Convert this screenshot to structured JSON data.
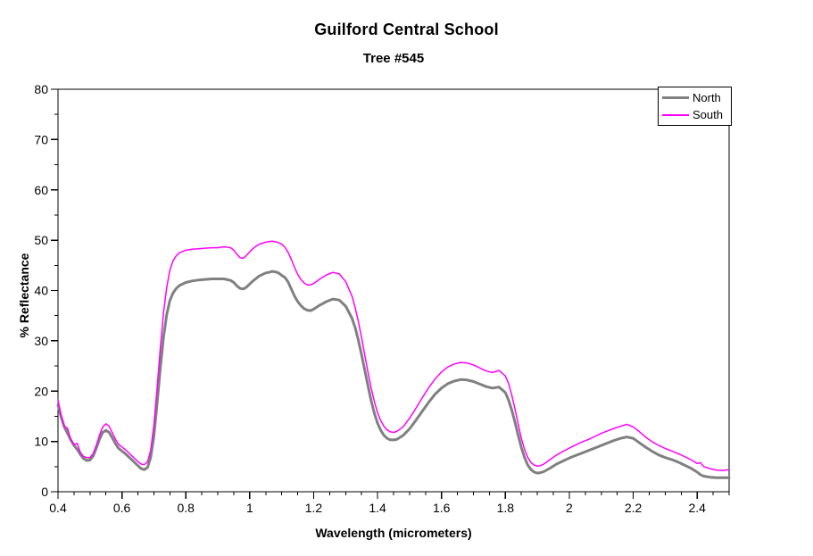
{
  "chart_data": {
    "type": "line",
    "title": "Guilford Central School",
    "subtitle": "Tree #545",
    "xlabel": "Wavelength (micrometers)",
    "ylabel": "% Reflectance",
    "xlim": [
      0.4,
      2.5
    ],
    "ylim": [
      0,
      80
    ],
    "grid": false,
    "background": "#FFFFFF",
    "legend_position": "top-right",
    "x_major_ticks": [
      0.4,
      0.6,
      0.8,
      1.0,
      1.2,
      1.4,
      1.6,
      1.8,
      2.0,
      2.2,
      2.4
    ],
    "x_major_tick_labels": [
      "0.4",
      "0.6",
      "0.8",
      "1",
      "1.2",
      "1.4",
      "1.6",
      "1.8",
      "2",
      "2.2",
      "2.4"
    ],
    "x_minor_tick_step": 0.05,
    "y_major_ticks": [
      0,
      10,
      20,
      30,
      40,
      50,
      60,
      70,
      80
    ],
    "y_major_tick_labels": [
      "0",
      "10",
      "20",
      "30",
      "40",
      "50",
      "60",
      "70",
      "80"
    ],
    "y_minor_tick_step": 5,
    "series": [
      {
        "name": "North",
        "color": "#808080",
        "stroke_width": 3
      },
      {
        "name": "South",
        "color": "#FF00FF",
        "stroke_width": 1.5
      }
    ],
    "points_format": [
      "wavelength_micrometers",
      "north_pct_reflectance",
      "south_pct_reflectance"
    ],
    "points": [
      [
        0.4,
        17.2,
        18.2
      ],
      [
        0.41,
        14.8,
        15.2
      ],
      [
        0.42,
        12.8,
        13.0
      ],
      [
        0.43,
        11.6,
        12.6
      ],
      [
        0.44,
        10.3,
        10.4
      ],
      [
        0.45,
        9.2,
        9.4
      ],
      [
        0.46,
        8.4,
        9.6
      ],
      [
        0.47,
        7.4,
        7.8
      ],
      [
        0.48,
        6.6,
        7.0
      ],
      [
        0.49,
        6.2,
        6.8
      ],
      [
        0.5,
        6.3,
        6.8
      ],
      [
        0.51,
        7.1,
        7.6
      ],
      [
        0.52,
        8.7,
        9.3
      ],
      [
        0.53,
        10.5,
        11.3
      ],
      [
        0.54,
        11.8,
        12.9
      ],
      [
        0.55,
        12.2,
        13.5
      ],
      [
        0.56,
        11.8,
        13.0
      ],
      [
        0.57,
        10.7,
        11.7
      ],
      [
        0.58,
        9.5,
        10.4
      ],
      [
        0.59,
        8.6,
        9.4
      ],
      [
        0.6,
        8.1,
        8.9
      ],
      [
        0.61,
        7.6,
        8.4
      ],
      [
        0.62,
        7.0,
        7.8
      ],
      [
        0.63,
        6.4,
        7.2
      ],
      [
        0.64,
        5.8,
        6.6
      ],
      [
        0.65,
        5.2,
        6.0
      ],
      [
        0.66,
        4.6,
        5.5
      ],
      [
        0.67,
        4.4,
        5.4
      ],
      [
        0.68,
        4.8,
        5.9
      ],
      [
        0.69,
        6.8,
        8.2
      ],
      [
        0.7,
        11.0,
        13.2
      ],
      [
        0.71,
        17.5,
        20.5
      ],
      [
        0.72,
        24.5,
        28.5
      ],
      [
        0.73,
        30.7,
        35.5
      ],
      [
        0.74,
        35.2,
        40.6
      ],
      [
        0.75,
        38.0,
        44.0
      ],
      [
        0.76,
        39.5,
        45.9
      ],
      [
        0.77,
        40.4,
        46.9
      ],
      [
        0.78,
        41.0,
        47.5
      ],
      [
        0.8,
        41.6,
        48.0
      ],
      [
        0.82,
        41.9,
        48.2
      ],
      [
        0.84,
        42.1,
        48.3
      ],
      [
        0.86,
        42.2,
        48.4
      ],
      [
        0.88,
        42.3,
        48.5
      ],
      [
        0.9,
        42.3,
        48.5
      ],
      [
        0.92,
        42.3,
        48.7
      ],
      [
        0.94,
        42.0,
        48.5
      ],
      [
        0.95,
        41.6,
        48.0
      ],
      [
        0.96,
        40.9,
        47.2
      ],
      [
        0.97,
        40.4,
        46.5
      ],
      [
        0.98,
        40.3,
        46.4
      ],
      [
        0.99,
        40.7,
        47.0
      ],
      [
        1.0,
        41.3,
        47.7
      ],
      [
        1.01,
        41.9,
        48.3
      ],
      [
        1.02,
        42.4,
        48.8
      ],
      [
        1.03,
        42.9,
        49.2
      ],
      [
        1.04,
        43.2,
        49.4
      ],
      [
        1.05,
        43.5,
        49.6
      ],
      [
        1.06,
        43.6,
        49.7
      ],
      [
        1.07,
        43.8,
        49.8
      ],
      [
        1.08,
        43.7,
        49.7
      ],
      [
        1.09,
        43.5,
        49.5
      ],
      [
        1.1,
        43.0,
        49.2
      ],
      [
        1.11,
        42.6,
        48.6
      ],
      [
        1.12,
        41.7,
        47.6
      ],
      [
        1.13,
        40.3,
        46.2
      ],
      [
        1.14,
        38.9,
        44.6
      ],
      [
        1.15,
        37.8,
        43.2
      ],
      [
        1.16,
        37.0,
        42.2
      ],
      [
        1.17,
        36.4,
        41.5
      ],
      [
        1.18,
        36.1,
        41.1
      ],
      [
        1.19,
        36.0,
        41.1
      ],
      [
        1.2,
        36.3,
        41.4
      ],
      [
        1.22,
        37.1,
        42.3
      ],
      [
        1.24,
        37.8,
        43.1
      ],
      [
        1.26,
        38.3,
        43.6
      ],
      [
        1.28,
        38.1,
        43.3
      ],
      [
        1.3,
        36.9,
        41.8
      ],
      [
        1.32,
        34.5,
        38.9
      ],
      [
        1.33,
        32.6,
        36.6
      ],
      [
        1.34,
        30.1,
        33.8
      ],
      [
        1.35,
        27.2,
        30.6
      ],
      [
        1.36,
        24.1,
        27.1
      ],
      [
        1.37,
        21.0,
        23.7
      ],
      [
        1.38,
        18.1,
        20.6
      ],
      [
        1.39,
        15.6,
        17.9
      ],
      [
        1.4,
        13.6,
        15.7
      ],
      [
        1.41,
        12.2,
        14.1
      ],
      [
        1.42,
        11.2,
        13.0
      ],
      [
        1.43,
        10.6,
        12.3
      ],
      [
        1.44,
        10.3,
        11.9
      ],
      [
        1.45,
        10.3,
        11.8
      ],
      [
        1.46,
        10.4,
        12.0
      ],
      [
        1.48,
        11.2,
        12.9
      ],
      [
        1.5,
        12.5,
        14.6
      ],
      [
        1.52,
        14.2,
        16.6
      ],
      [
        1.54,
        16.0,
        18.7
      ],
      [
        1.56,
        17.8,
        20.7
      ],
      [
        1.58,
        19.4,
        22.4
      ],
      [
        1.6,
        20.6,
        23.8
      ],
      [
        1.62,
        21.5,
        24.8
      ],
      [
        1.64,
        22.0,
        25.4
      ],
      [
        1.66,
        22.3,
        25.7
      ],
      [
        1.68,
        22.2,
        25.6
      ],
      [
        1.7,
        21.9,
        25.2
      ],
      [
        1.72,
        21.4,
        24.6
      ],
      [
        1.74,
        20.9,
        24.0
      ],
      [
        1.76,
        20.6,
        23.7
      ],
      [
        1.78,
        20.8,
        24.1
      ],
      [
        1.8,
        19.7,
        23.0
      ],
      [
        1.81,
        18.2,
        21.5
      ],
      [
        1.82,
        16.2,
        19.2
      ],
      [
        1.83,
        13.8,
        16.4
      ],
      [
        1.84,
        11.2,
        13.4
      ],
      [
        1.85,
        8.8,
        10.6
      ],
      [
        1.86,
        6.8,
        8.4
      ],
      [
        1.87,
        5.3,
        6.8
      ],
      [
        1.88,
        4.4,
        5.8
      ],
      [
        1.89,
        3.9,
        5.3
      ],
      [
        1.9,
        3.7,
        5.1
      ],
      [
        1.91,
        3.8,
        5.2
      ],
      [
        1.92,
        4.0,
        5.5
      ],
      [
        1.94,
        4.7,
        6.4
      ],
      [
        1.96,
        5.5,
        7.3
      ],
      [
        1.98,
        6.1,
        8.0
      ],
      [
        2.0,
        6.7,
        8.7
      ],
      [
        2.02,
        7.2,
        9.3
      ],
      [
        2.04,
        7.7,
        9.9
      ],
      [
        2.06,
        8.2,
        10.4
      ],
      [
        2.08,
        8.7,
        11.0
      ],
      [
        2.1,
        9.2,
        11.6
      ],
      [
        2.12,
        9.7,
        12.1
      ],
      [
        2.14,
        10.2,
        12.6
      ],
      [
        2.16,
        10.6,
        13.0
      ],
      [
        2.18,
        10.9,
        13.4
      ],
      [
        2.2,
        10.6,
        12.9
      ],
      [
        2.22,
        9.7,
        11.9
      ],
      [
        2.24,
        8.8,
        10.8
      ],
      [
        2.26,
        8.0,
        9.9
      ],
      [
        2.28,
        7.3,
        9.2
      ],
      [
        2.3,
        6.8,
        8.6
      ],
      [
        2.32,
        6.4,
        8.1
      ],
      [
        2.34,
        5.9,
        7.6
      ],
      [
        2.36,
        5.3,
        7.0
      ],
      [
        2.38,
        4.7,
        6.4
      ],
      [
        2.4,
        3.9,
        5.6
      ],
      [
        2.41,
        3.4,
        5.8
      ],
      [
        2.42,
        3.1,
        5.0
      ],
      [
        2.44,
        2.9,
        4.6
      ],
      [
        2.46,
        2.8,
        4.3
      ],
      [
        2.48,
        2.8,
        4.2
      ],
      [
        2.5,
        2.8,
        4.4
      ]
    ]
  }
}
